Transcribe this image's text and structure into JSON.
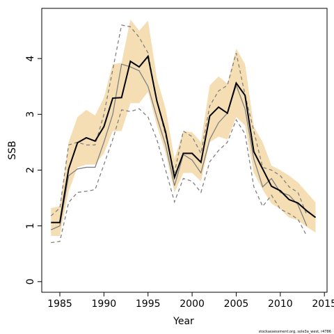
{
  "chart_data": {
    "type": "line",
    "x_label": "Year",
    "y_label": "SSB",
    "footnote": "stockassessment.org, sole3a_west, r4786",
    "x": [
      1984,
      1985,
      1986,
      1987,
      1988,
      1989,
      1990,
      1991,
      1992,
      1993,
      1994,
      1995,
      1996,
      1997,
      1998,
      1999,
      2000,
      2001,
      2002,
      2003,
      2004,
      2005,
      2006,
      2007,
      2008,
      2009,
      2010,
      2011,
      2012,
      2013,
      2014
    ],
    "band": {
      "color": "#f5deb3",
      "lower": [
        0.82,
        0.82,
        1.62,
        2.05,
        2.1,
        2.1,
        2.3,
        2.7,
        2.7,
        3.2,
        3.2,
        3.4,
        2.8,
        2.3,
        1.6,
        1.95,
        1.95,
        1.8,
        2.5,
        2.6,
        2.55,
        2.95,
        2.8,
        1.95,
        1.65,
        1.4,
        1.3,
        1.15,
        1.1,
        0.98,
        0.88
      ],
      "upper": [
        1.32,
        1.35,
        2.5,
        2.95,
        3.08,
        2.98,
        3.3,
        3.9,
        3.92,
        4.7,
        4.5,
        4.68,
        3.65,
        3.1,
        2.2,
        2.7,
        2.68,
        2.5,
        3.52,
        3.68,
        3.55,
        4.18,
        3.9,
        2.78,
        2.5,
        2.08,
        2.0,
        1.9,
        1.78,
        1.6,
        1.42
      ]
    },
    "series": [
      {
        "color": "#808080",
        "dash": true,
        "width": 1.3,
        "values": [
          1.18,
          1.32,
          2.45,
          2.5,
          2.45,
          2.45,
          3.0,
          3.8,
          4.6,
          4.57,
          4.38,
          4.1,
          3.25,
          2.62,
          1.95,
          2.7,
          2.6,
          2.3,
          3.15,
          3.42,
          3.52,
          4.1,
          3.35,
          2.7,
          2.05,
          2.0,
          1.9,
          1.7,
          1.6,
          1.2,
          null
        ]
      },
      {
        "color": "#808080",
        "dash": true,
        "width": 1.3,
        "values": [
          0.7,
          0.72,
          1.42,
          1.6,
          1.62,
          1.65,
          2.1,
          2.55,
          3.08,
          3.05,
          3.1,
          2.95,
          2.55,
          2.0,
          1.43,
          1.85,
          1.8,
          1.6,
          2.15,
          2.35,
          2.5,
          2.9,
          2.65,
          1.7,
          1.35,
          1.55,
          1.3,
          1.22,
          1.12,
          0.82,
          null
        ]
      },
      {
        "color": "#808080",
        "dash": false,
        "width": 1.3,
        "values": [
          0.93,
          1.0,
          1.9,
          2.02,
          2.05,
          2.05,
          2.5,
          3.0,
          3.9,
          3.85,
          3.78,
          3.5,
          2.95,
          2.45,
          1.72,
          2.28,
          2.18,
          1.95,
          2.55,
          2.85,
          3.02,
          3.52,
          3.1,
          2.2,
          1.7,
          1.85,
          1.6,
          1.55,
          1.38,
          1.0,
          null
        ]
      },
      {
        "color": "#000000",
        "dash": false,
        "width": 2,
        "values": [
          1.06,
          1.06,
          2.02,
          2.49,
          2.58,
          2.52,
          2.78,
          3.29,
          3.3,
          3.95,
          3.85,
          4.04,
          3.24,
          2.68,
          1.87,
          2.3,
          2.3,
          2.14,
          2.97,
          3.13,
          3.02,
          3.56,
          3.34,
          2.33,
          2.02,
          1.71,
          1.63,
          1.47,
          1.41,
          1.27,
          1.15
        ]
      }
    ],
    "xlim": [
      1982.95,
      2015.3
    ],
    "ylim": [
      -0.19,
      4.9
    ],
    "xticks": [
      1985,
      1990,
      1995,
      2000,
      2005,
      2010,
      2015
    ],
    "yticks": [
      0,
      1,
      2,
      3,
      4
    ]
  }
}
